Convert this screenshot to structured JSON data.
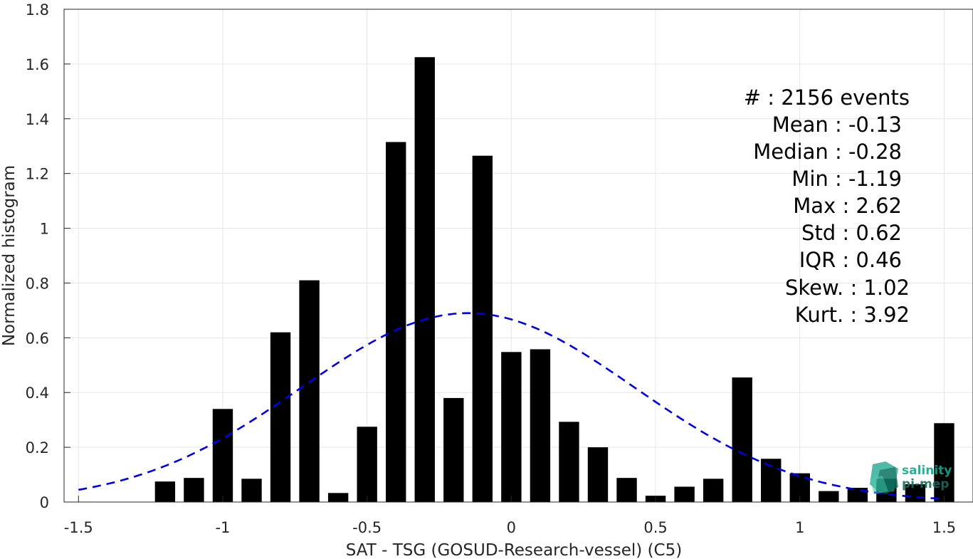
{
  "chart_data": {
    "type": "bar",
    "xlabel": "SAT - TSG (GOSUD-Research-vessel) (C5)",
    "ylabel": "Normalized histogram",
    "xlim": [
      -1.55,
      1.6
    ],
    "ylim": [
      0,
      1.8
    ],
    "xticks": [
      -1.5,
      -1,
      -0.5,
      0,
      0.5,
      1,
      1.5
    ],
    "xtick_labels": [
      "-1.5",
      "-1",
      "-0.5",
      "0",
      "0.5",
      "1",
      "1.5"
    ],
    "yticks": [
      0,
      0.2,
      0.4,
      0.6,
      0.8,
      1,
      1.2,
      1.4,
      1.6,
      1.8
    ],
    "ytick_labels": [
      "0",
      "0.2",
      "0.4",
      "0.6",
      "0.8",
      "1",
      "1.2",
      "1.4",
      "1.6",
      "1.8"
    ],
    "grid": true,
    "bar_width": 0.07,
    "bins": [
      {
        "x": -1.2,
        "y": 0.075
      },
      {
        "x": -1.1,
        "y": 0.088
      },
      {
        "x": -1.0,
        "y": 0.34
      },
      {
        "x": -0.9,
        "y": 0.085
      },
      {
        "x": -0.8,
        "y": 0.62
      },
      {
        "x": -0.7,
        "y": 0.81
      },
      {
        "x": -0.6,
        "y": 0.033
      },
      {
        "x": -0.5,
        "y": 0.275
      },
      {
        "x": -0.4,
        "y": 1.315
      },
      {
        "x": -0.3,
        "y": 1.625
      },
      {
        "x": -0.2,
        "y": 0.38
      },
      {
        "x": -0.1,
        "y": 1.265
      },
      {
        "x": 0.0,
        "y": 0.548
      },
      {
        "x": 0.1,
        "y": 0.558
      },
      {
        "x": 0.2,
        "y": 0.293
      },
      {
        "x": 0.3,
        "y": 0.2
      },
      {
        "x": 0.4,
        "y": 0.088
      },
      {
        "x": 0.5,
        "y": 0.023
      },
      {
        "x": 0.6,
        "y": 0.056
      },
      {
        "x": 0.7,
        "y": 0.085
      },
      {
        "x": 0.8,
        "y": 0.455
      },
      {
        "x": 0.9,
        "y": 0.158
      },
      {
        "x": 1.0,
        "y": 0.105
      },
      {
        "x": 1.1,
        "y": 0.04
      },
      {
        "x": 1.2,
        "y": 0.052
      },
      {
        "x": 1.3,
        "y": 0.085
      },
      {
        "x": 1.4,
        "y": 0.065
      },
      {
        "x": 1.5,
        "y": 0.288
      }
    ],
    "fit_curve": {
      "style": "dashed",
      "color": "#0000e6",
      "mean": -0.15,
      "std": 0.577,
      "x_range": [
        -1.5,
        1.5
      ]
    },
    "bar_color": "#000000",
    "stats": [
      {
        "label": "#  : 2156 events"
      },
      {
        "label": "Mean : -0.13"
      },
      {
        "label": "Median : -0.28"
      },
      {
        "label": "Min : -1.19"
      },
      {
        "label": "Max : 2.62"
      },
      {
        "label": "Std : 0.62"
      },
      {
        "label": "IQR : 0.46"
      },
      {
        "label": "Skew. : 1.02"
      },
      {
        "label": "Kurt. : 3.92"
      }
    ]
  },
  "logo": {
    "line1": "salinity",
    "line2": "pi-mep",
    "icon": "salinity-pimep-logo-icon"
  }
}
